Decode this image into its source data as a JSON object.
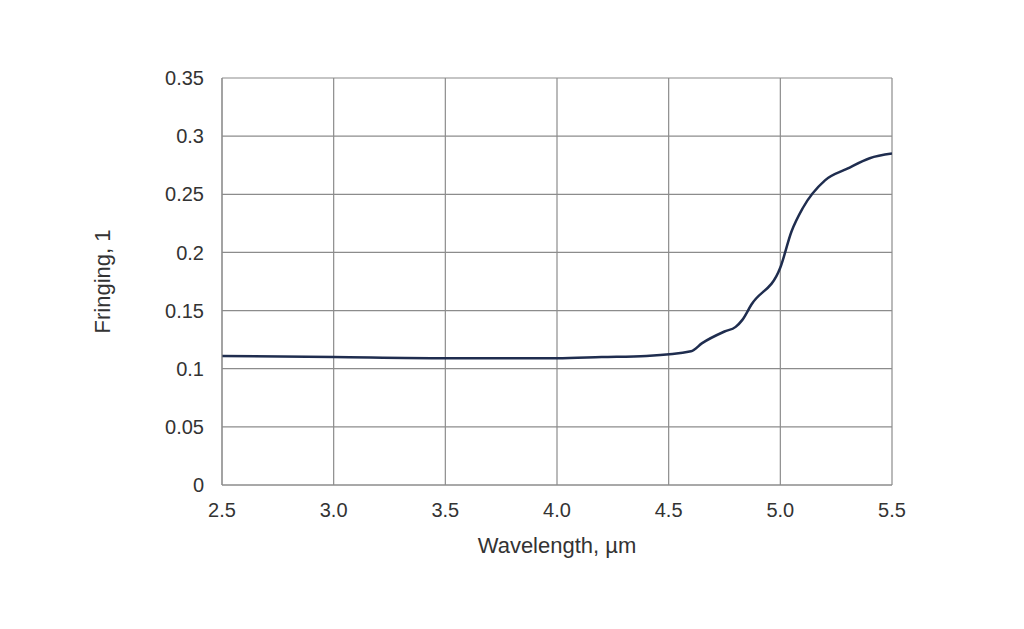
{
  "chart_data": {
    "type": "line",
    "x_label": "Wavelength, µm",
    "y_label": "Fringing, 1",
    "x": [
      2.5,
      3.0,
      3.5,
      4.0,
      4.2,
      4.4,
      4.6,
      4.65,
      4.75,
      4.8,
      4.83,
      4.87,
      5.0,
      5.05,
      5.1,
      5.2,
      5.3,
      5.4,
      5.5
    ],
    "values": [
      0.111,
      0.11,
      0.109,
      0.109,
      0.11,
      0.111,
      0.115,
      0.122,
      0.132,
      0.136,
      0.142,
      0.155,
      0.187,
      0.218,
      0.238,
      0.262,
      0.272,
      0.281,
      0.285
    ],
    "color": "#1f2d4f",
    "xlim": [
      2.5,
      5.5
    ],
    "xticks": [
      2.5,
      {
        "value": 3,
        "label": "3.0"
      },
      3.5,
      {
        "value": 4,
        "label": "4.0"
      },
      4.5,
      {
        "value": 5,
        "label": "5.0"
      },
      5.5
    ],
    "ylim": [
      0,
      0.35
    ],
    "yticks": [
      0,
      0.05,
      0.1,
      0.15,
      0.2,
      0.25,
      0.3,
      0.35
    ],
    "grid": true
  }
}
